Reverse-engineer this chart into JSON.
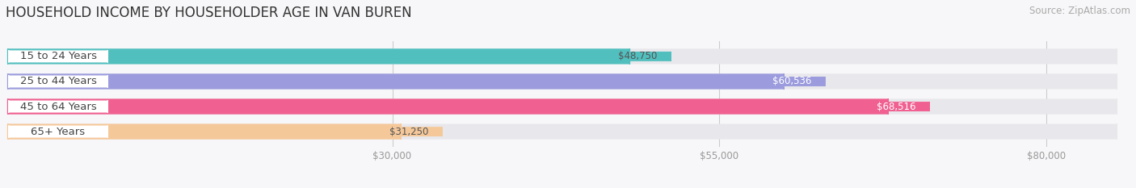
{
  "title": "HOUSEHOLD INCOME BY HOUSEHOLDER AGE IN VAN BUREN",
  "source": "Source: ZipAtlas.com",
  "categories": [
    "15 to 24 Years",
    "25 to 44 Years",
    "45 to 64 Years",
    "65+ Years"
  ],
  "values": [
    48750,
    60536,
    68516,
    31250
  ],
  "bar_colors": [
    "#52bfbf",
    "#9b9bdd",
    "#f06090",
    "#f5c89a"
  ],
  "value_label_text_colors": [
    "#555555",
    "#ffffff",
    "#ffffff",
    "#555555"
  ],
  "bar_bg_color": "#e8e8ec",
  "background_color": "#f7f7f9",
  "x_ticks": [
    30000,
    55000,
    80000
  ],
  "x_tick_labels": [
    "$30,000",
    "$55,000",
    "$80,000"
  ],
  "x_max": 86000,
  "x_min": 0,
  "value_labels": [
    "$48,750",
    "$60,536",
    "$68,516",
    "$31,250"
  ],
  "title_fontsize": 12,
  "source_fontsize": 8.5,
  "bar_label_fontsize": 8.5,
  "tick_fontsize": 8.5,
  "cat_fontsize": 9.5
}
